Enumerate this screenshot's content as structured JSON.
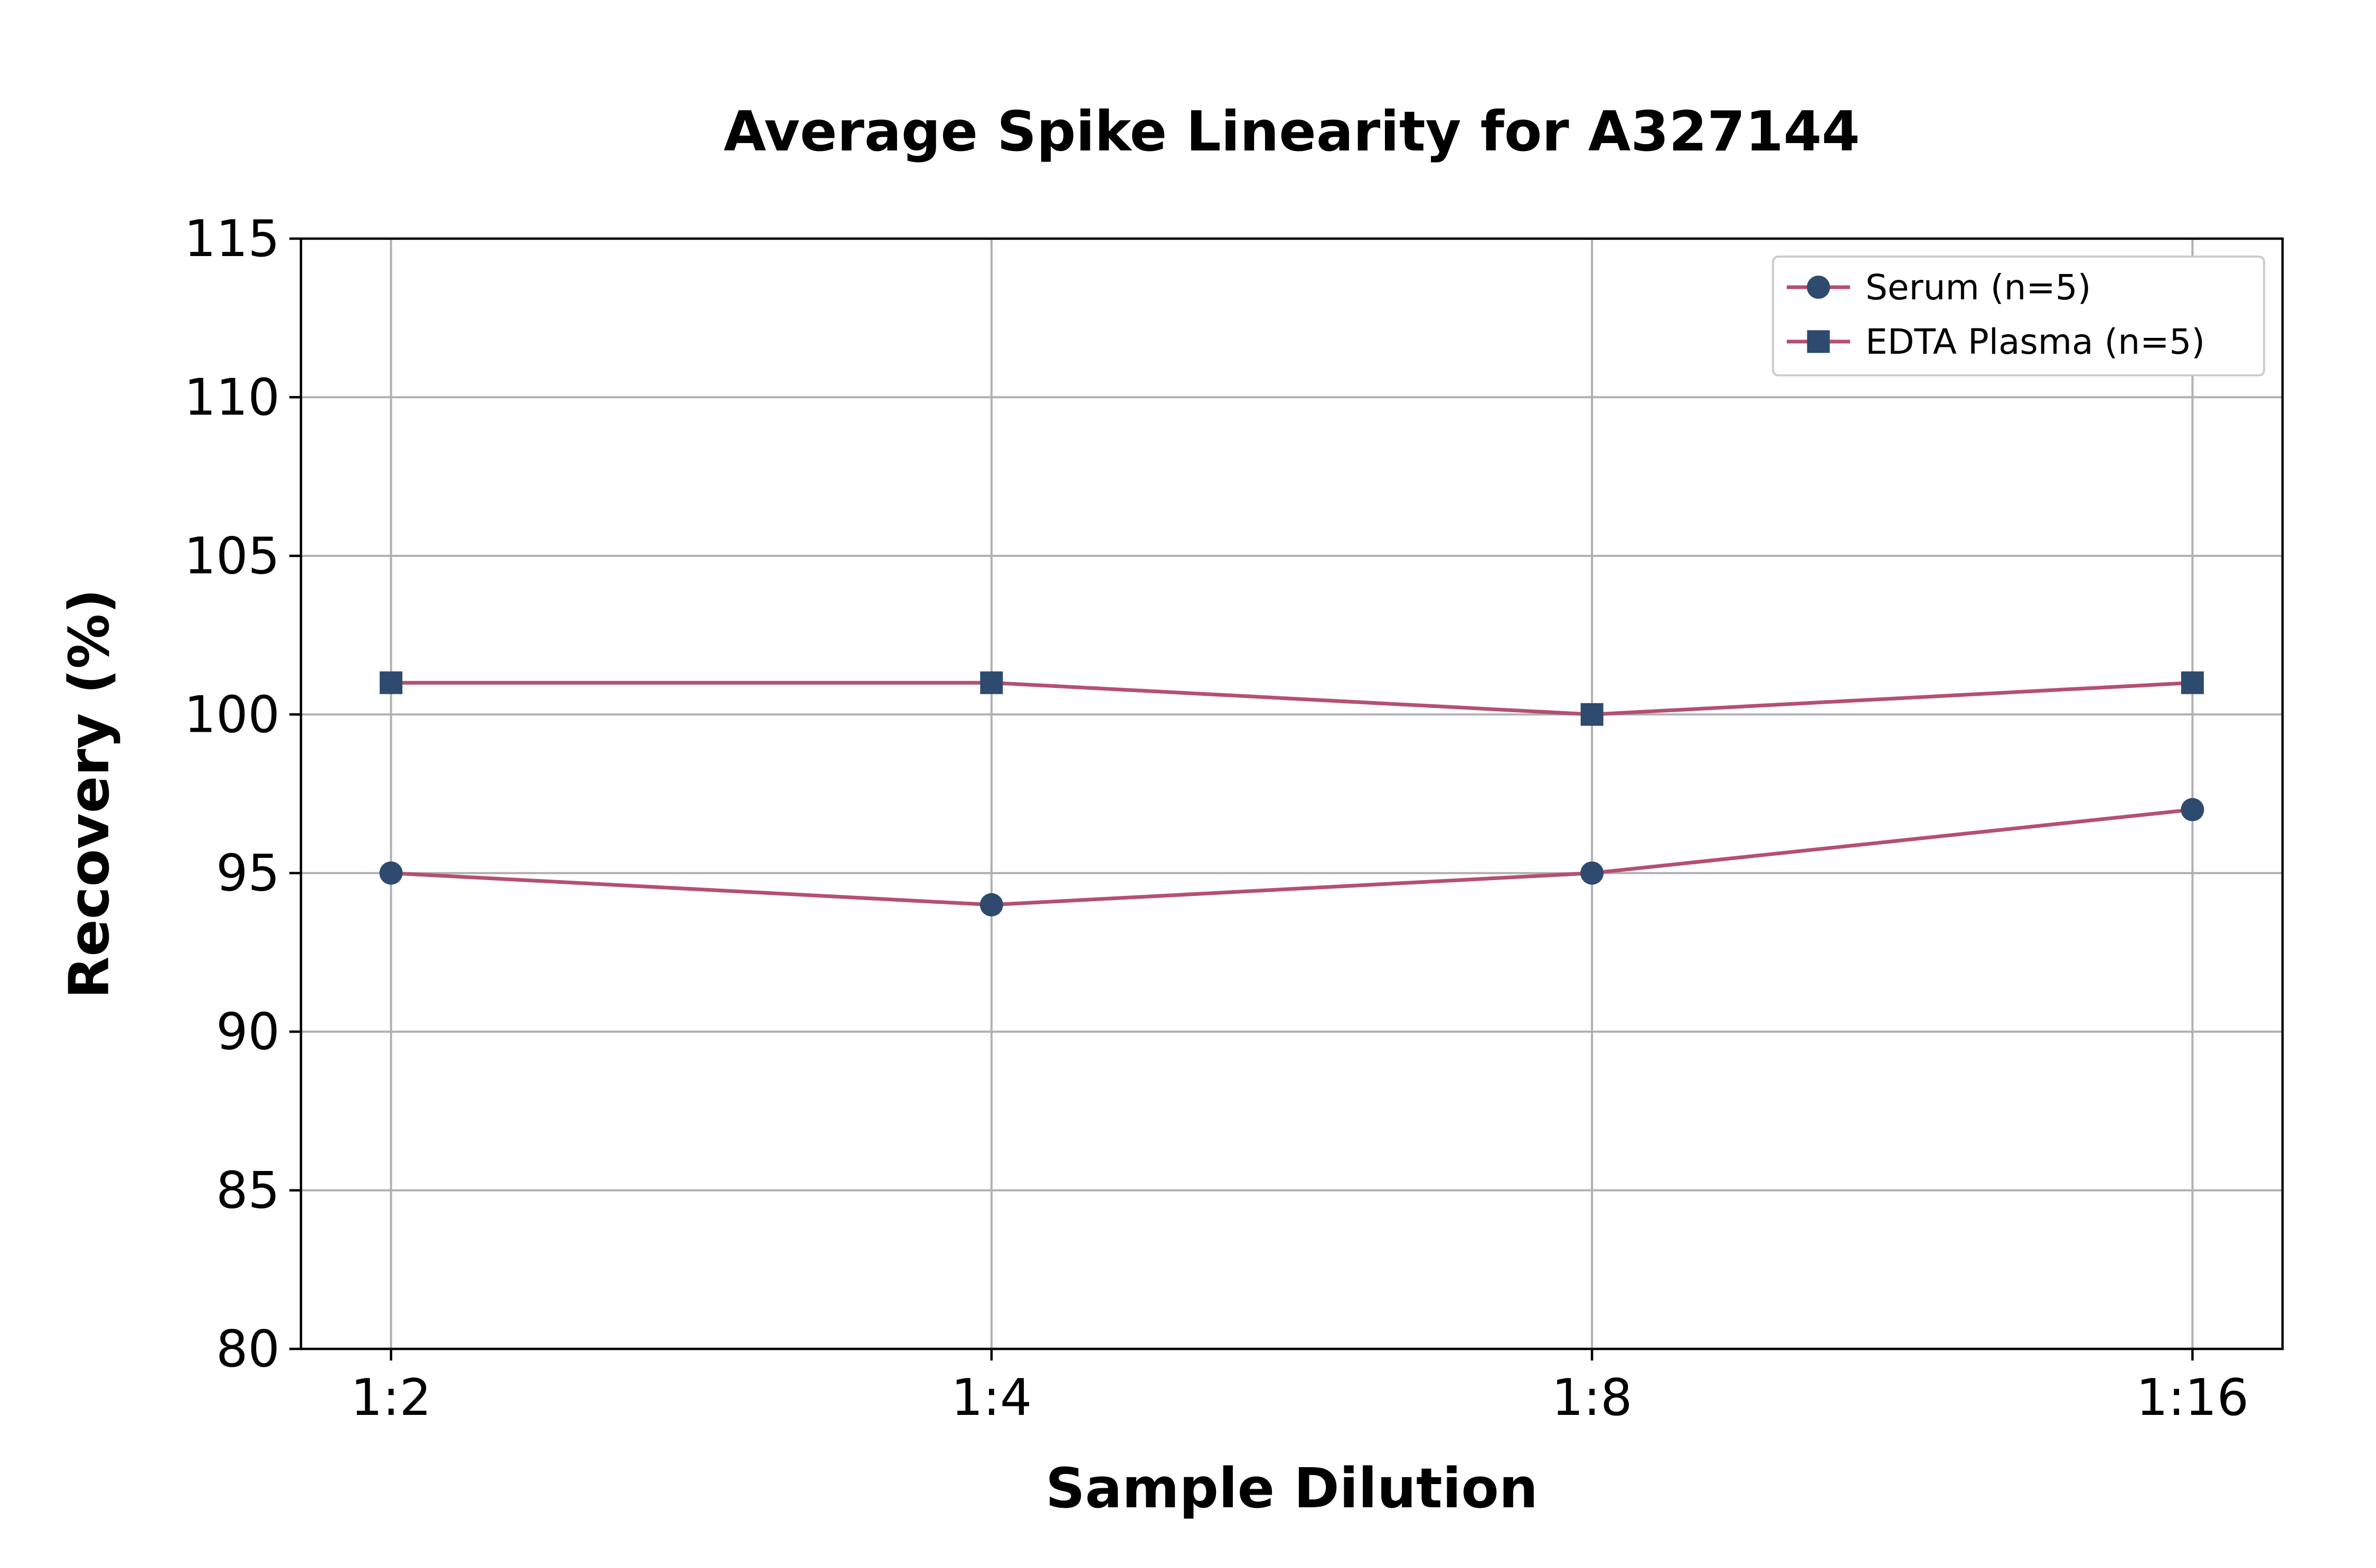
{
  "chart_data": {
    "type": "line",
    "title": "Average Spike Linearity for A327144",
    "xlabel": "Sample Dilution",
    "ylabel": "Recovery (%)",
    "categories": [
      "1:2",
      "1:4",
      "1:8",
      "1:16"
    ],
    "ylim": [
      80,
      115
    ],
    "yticks": [
      80,
      85,
      90,
      95,
      100,
      105,
      110,
      115
    ],
    "grid": true,
    "legend_position": "top-right",
    "series": [
      {
        "name": "Serum (n=5)",
        "values": [
          95,
          94,
          95,
          97
        ],
        "marker": "circle",
        "line_color": "#b5506f",
        "marker_color": "#2e4a6e"
      },
      {
        "name": "EDTA Plasma (n=5)",
        "values": [
          101,
          101,
          100,
          101
        ],
        "marker": "square",
        "line_color": "#b5506f",
        "marker_color": "#2e4a6e"
      }
    ]
  }
}
